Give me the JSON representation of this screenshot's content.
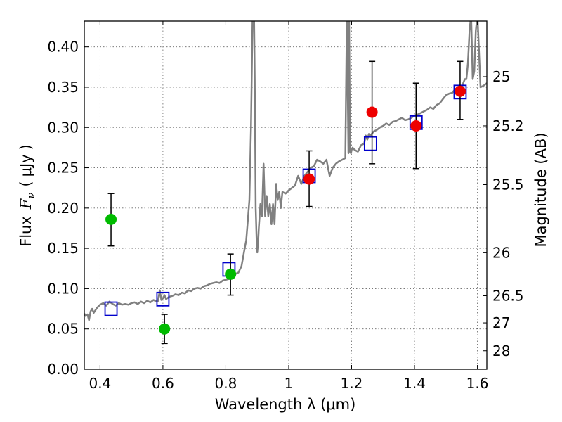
{
  "chart_data": {
    "type": "scatter",
    "title": "",
    "xlabel": "Wavelength  λ (μm)",
    "ylabel": "Flux  F_ν  ( μJy )",
    "ylabel_parts": [
      "Flux",
      "F",
      "ν",
      "(",
      "μJy",
      ")"
    ],
    "y2label": "Magnitude (AB)",
    "xlim": [
      0.35,
      1.63
    ],
    "ylim": [
      0,
      0.432
    ],
    "grid": true,
    "x_ticks": [
      0.4,
      0.6,
      0.8,
      1.0,
      1.2,
      1.4,
      1.6
    ],
    "x_tick_labels": [
      "0.4",
      "0.6",
      "0.8",
      "1",
      "1.2",
      "1.4",
      "1.6"
    ],
    "y_ticks": [
      0,
      0.05,
      0.1,
      0.15,
      0.2,
      0.25,
      0.3,
      0.35,
      0.4
    ],
    "y_tick_labels": [
      "0.00",
      "0.05",
      "0.10",
      "0.15",
      "0.20",
      "0.25",
      "0.30",
      "0.35",
      "0.40"
    ],
    "y2_ticks": [
      25,
      25.2,
      25.5,
      26,
      26.5,
      27,
      28
    ],
    "y2_tick_labels": [
      "25",
      "25.2",
      "25.5",
      "26",
      "26.5",
      "27",
      "28"
    ],
    "colors": {
      "spectrum": "#808080",
      "model_box": "#0000cc",
      "green": "#00bb00",
      "red": "#ee0000",
      "errorbar": "#000000"
    },
    "series": [
      {
        "kind": "line",
        "x": [
          0.35,
          0.355,
          0.36,
          0.365,
          0.37,
          0.375,
          0.38,
          0.39,
          0.4,
          0.41,
          0.42,
          0.43,
          0.44,
          0.45,
          0.46,
          0.47,
          0.48,
          0.49,
          0.5,
          0.51,
          0.52,
          0.53,
          0.54,
          0.55,
          0.56,
          0.57,
          0.58,
          0.585,
          0.59,
          0.595,
          0.6,
          0.605,
          0.61,
          0.62,
          0.63,
          0.64,
          0.65,
          0.66,
          0.67,
          0.68,
          0.69,
          0.7,
          0.71,
          0.72,
          0.73,
          0.74,
          0.75,
          0.76,
          0.77,
          0.78,
          0.79,
          0.8,
          0.81,
          0.82,
          0.83,
          0.84,
          0.85,
          0.86,
          0.865,
          0.87,
          0.875,
          0.88,
          0.885,
          0.89,
          0.892,
          0.895,
          0.898,
          0.9,
          0.903,
          0.905,
          0.91,
          0.915,
          0.92,
          0.925,
          0.93,
          0.935,
          0.94,
          0.945,
          0.95,
          0.955,
          0.96,
          0.965,
          0.97,
          0.975,
          0.98,
          0.99,
          1.0,
          1.01,
          1.02,
          1.03,
          1.04,
          1.05,
          1.06,
          1.07,
          1.08,
          1.09,
          1.1,
          1.11,
          1.12,
          1.13,
          1.14,
          1.15,
          1.16,
          1.17,
          1.18,
          1.185,
          1.19,
          1.192,
          1.195,
          1.198,
          1.2,
          1.203,
          1.21,
          1.22,
          1.23,
          1.24,
          1.245,
          1.25,
          1.255,
          1.26,
          1.27,
          1.28,
          1.29,
          1.3,
          1.31,
          1.32,
          1.33,
          1.34,
          1.35,
          1.36,
          1.37,
          1.38,
          1.39,
          1.4,
          1.41,
          1.42,
          1.43,
          1.44,
          1.45,
          1.46,
          1.47,
          1.48,
          1.49,
          1.5,
          1.51,
          1.52,
          1.53,
          1.535,
          1.54,
          1.545,
          1.55,
          1.555,
          1.56,
          1.565,
          1.57,
          1.575,
          1.58,
          1.585,
          1.59,
          1.595,
          1.6,
          1.61,
          1.62,
          1.63
        ],
        "y": [
          0.069,
          0.066,
          0.068,
          0.061,
          0.072,
          0.075,
          0.07,
          0.076,
          0.08,
          0.082,
          0.079,
          0.084,
          0.081,
          0.079,
          0.082,
          0.08,
          0.081,
          0.08,
          0.082,
          0.083,
          0.081,
          0.084,
          0.082,
          0.085,
          0.083,
          0.086,
          0.084,
          0.085,
          0.098,
          0.086,
          0.088,
          0.092,
          0.087,
          0.09,
          0.091,
          0.093,
          0.092,
          0.095,
          0.094,
          0.098,
          0.097,
          0.1,
          0.101,
          0.1,
          0.103,
          0.104,
          0.106,
          0.107,
          0.108,
          0.107,
          0.11,
          0.111,
          0.112,
          0.116,
          0.118,
          0.12,
          0.128,
          0.15,
          0.16,
          0.185,
          0.21,
          0.3,
          0.435,
          0.435,
          0.36,
          0.2,
          0.16,
          0.145,
          0.16,
          0.175,
          0.205,
          0.19,
          0.255,
          0.19,
          0.215,
          0.19,
          0.205,
          0.18,
          0.205,
          0.18,
          0.23,
          0.21,
          0.22,
          0.2,
          0.22,
          0.218,
          0.222,
          0.225,
          0.228,
          0.24,
          0.23,
          0.24,
          0.245,
          0.25,
          0.252,
          0.26,
          0.258,
          0.255,
          0.26,
          0.24,
          0.25,
          0.255,
          0.258,
          0.26,
          0.262,
          0.44,
          0.268,
          0.44,
          0.27,
          0.268,
          0.272,
          0.275,
          0.272,
          0.27,
          0.278,
          0.28,
          0.29,
          0.285,
          0.292,
          0.29,
          0.295,
          0.297,
          0.3,
          0.302,
          0.305,
          0.303,
          0.307,
          0.308,
          0.31,
          0.312,
          0.309,
          0.31,
          0.312,
          0.315,
          0.316,
          0.318,
          0.32,
          0.322,
          0.325,
          0.323,
          0.328,
          0.33,
          0.335,
          0.34,
          0.342,
          0.343,
          0.348,
          0.345,
          0.35,
          0.352,
          0.348,
          0.355,
          0.36,
          0.36,
          0.38,
          0.42,
          0.44,
          0.36,
          0.37,
          0.42,
          0.44,
          0.35,
          0.352,
          0.355
        ]
      },
      {
        "kind": "model_boxes",
        "x": [
          0.435,
          0.6,
          0.81,
          1.065,
          1.26,
          1.405,
          1.545
        ],
        "y": [
          0.075,
          0.087,
          0.124,
          0.24,
          0.28,
          0.306,
          0.344
        ]
      },
      {
        "kind": "green_points",
        "x": [
          0.435,
          0.605,
          0.815
        ],
        "y": [
          0.186,
          0.05,
          0.118
        ],
        "yerr_low": [
          0.153,
          0.032,
          0.092
        ],
        "yerr_high": [
          0.218,
          0.068,
          0.143
        ]
      },
      {
        "kind": "red_points",
        "x": [
          1.065,
          1.265,
          1.405,
          1.545
        ],
        "y": [
          0.236,
          0.319,
          0.302,
          0.345
        ],
        "yerr_low": [
          0.202,
          0.255,
          0.249,
          0.31
        ],
        "yerr_high": [
          0.271,
          0.382,
          0.355,
          0.382
        ]
      }
    ]
  }
}
